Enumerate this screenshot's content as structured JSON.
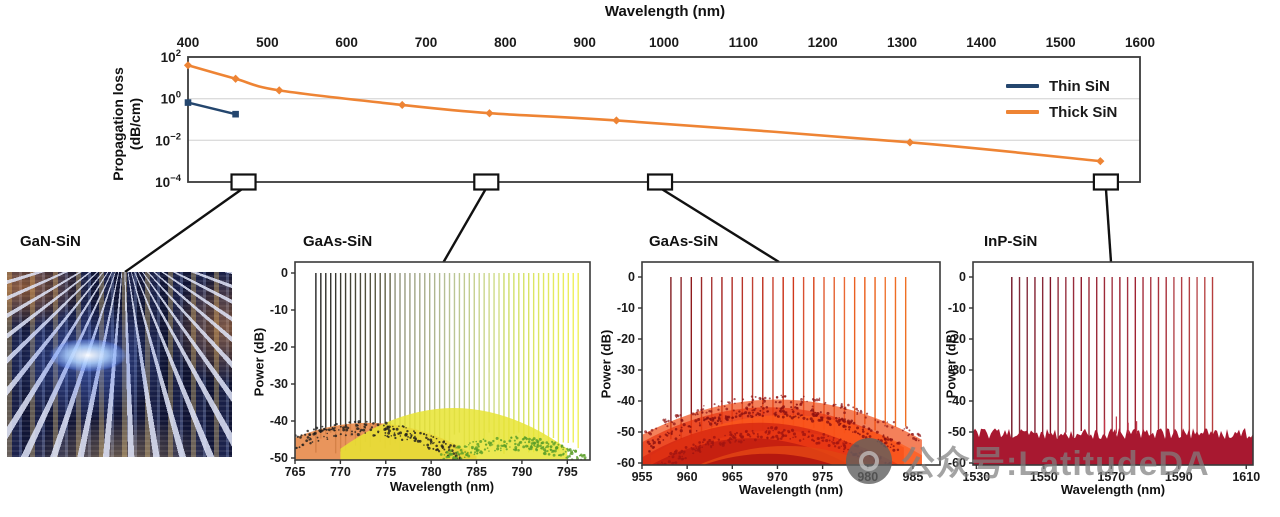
{
  "top_chart": {
    "ylabel_line1": "Propagation loss",
    "ylabel_line2": "(dB/cm)"
  },
  "photo_panel": {
    "label": "GaN-SiN",
    "type": "photograph",
    "content": "GaN photonic chip under probe needles emitting bright blue light"
  },
  "watermark": {
    "logo": "camera-icon",
    "text": "公众号:LatitudeDA",
    "color": "#808080"
  },
  "chart_data": [
    {
      "type": "line",
      "name": "propagation-loss-vs-wavelength",
      "title": "Wavelength (nm)",
      "xlabel": "Wavelength (nm)",
      "ylabel": "Propagation loss (dB/cm)",
      "x_axis_position": "top",
      "xlim": [
        400,
        1600
      ],
      "x_ticks": [
        400,
        500,
        600,
        700,
        800,
        900,
        1000,
        1100,
        1200,
        1300,
        1400,
        1500,
        1600
      ],
      "y_scale": "log",
      "ylim_exp": [
        -4,
        2
      ],
      "y_tick_exponents": [
        2,
        0,
        -2,
        -4
      ],
      "gridline_exponents": [
        0,
        -2
      ],
      "legend_position": "top-right",
      "series": [
        {
          "name": "Thin SiN",
          "color": "#24466e",
          "marker": "square",
          "x": [
            400,
            460
          ],
          "y": [
            0.65,
            0.18
          ]
        },
        {
          "name": "Thick SiN",
          "color": "#ee8434",
          "marker": "diamond",
          "x": [
            400,
            460,
            515,
            670,
            780,
            940,
            1310,
            1550
          ],
          "y": [
            40,
            9,
            2.5,
            0.5,
            0.2,
            0.09,
            0.008,
            0.001
          ]
        }
      ],
      "callout_boxes_nm": [
        470,
        776,
        995,
        1557
      ]
    },
    {
      "type": "line",
      "name": "gaas-sin-laser-spectra-780nm",
      "title": "GaAs-SiN",
      "xlabel": "Wavelength (nm)",
      "ylabel": "Power (dB)",
      "xlim": [
        765,
        797.5
      ],
      "x_ticks": [
        765,
        770,
        775,
        780,
        785,
        790,
        795
      ],
      "ylim": [
        -50,
        0
      ],
      "y_ticks": [
        0,
        -10,
        -20,
        -30,
        -40,
        -50
      ],
      "comb": {
        "start_nm": 767.3,
        "end_nm": 796.2,
        "count": 54,
        "peak_db": 0,
        "bottom_db": -46,
        "color_stops": [
          "#1a1a1a",
          "#55543a",
          "#9aa86a",
          "#cadc50",
          "#eeee3e"
        ]
      },
      "humps": [
        {
          "center_nm": 773,
          "half_width_nm": 12,
          "peak_db": -40.5,
          "droop_db": 9,
          "color": "#e78a4a",
          "opacity": 0.9
        },
        {
          "center_nm": 782.5,
          "half_width_nm": 12.5,
          "peak_db": -36.5,
          "droop_db": 11,
          "color": "#e8e432",
          "opacity": 0.85
        },
        {
          "center_nm": 772.5,
          "half_width_nm": 11,
          "peak_db": -42,
          "droop_db": 8,
          "color": "#1c1c1c",
          "style": "speckle"
        },
        {
          "center_nm": 789,
          "half_width_nm": 8,
          "peak_db": -46,
          "droop_db": 5,
          "color": "#5a9e28",
          "style": "speckle"
        }
      ]
    },
    {
      "type": "line",
      "name": "gaas-sin-laser-spectra-970nm",
      "title": "GaAs-SiN",
      "xlabel": "Wavelength (nm)",
      "ylabel": "Power (dB)",
      "xlim": [
        955,
        988
      ],
      "x_ticks": [
        955,
        960,
        965,
        970,
        975,
        980,
        985
      ],
      "ylim": [
        -60,
        0
      ],
      "y_ticks": [
        0,
        -10,
        -20,
        -30,
        -40,
        -50,
        -60
      ],
      "comb": {
        "start_nm": 958.2,
        "end_nm": 984.2,
        "count": 24,
        "peak_db": 0,
        "bottom_db": -50,
        "color_stops": [
          "#7c1016",
          "#a81a14",
          "#cc2c10",
          "#e85414",
          "#ef6c1c"
        ]
      },
      "humps": [
        {
          "center_nm": 970,
          "half_width_nm": 16,
          "peak_db": -39.5,
          "droop_db": 13,
          "color": "#f04a14",
          "opacity": 0.7,
          "style2": "speckle"
        },
        {
          "center_nm": 969,
          "half_width_nm": 15,
          "peak_db": -42,
          "droop_db": 13,
          "color": "#e83410",
          "opacity": 0.7
        },
        {
          "center_nm": 971,
          "half_width_nm": 15,
          "peak_db": -44.5,
          "droop_db": 13,
          "color": "#ff5a1a",
          "opacity": 0.7
        },
        {
          "center_nm": 968,
          "half_width_nm": 14,
          "peak_db": -47,
          "droop_db": 13,
          "color": "#d42410",
          "opacity": 0.75
        },
        {
          "center_nm": 970,
          "half_width_nm": 14,
          "peak_db": -49.5,
          "droop_db": 12,
          "color": "#e83814",
          "opacity": 0.8
        },
        {
          "center_nm": 967,
          "half_width_nm": 13,
          "peak_db": -52,
          "droop_db": 12,
          "color": "#c01c10",
          "opacity": 0.85
        },
        {
          "center_nm": 971,
          "half_width_nm": 13,
          "peak_db": -54.5,
          "droop_db": 11,
          "color": "#e04414",
          "opacity": 0.85
        },
        {
          "center_nm": 969,
          "half_width_nm": 12,
          "peak_db": -57,
          "droop_db": 10,
          "color": "#b01410",
          "opacity": 0.9
        },
        {
          "center_nm": 969.5,
          "half_width_nm": 14,
          "peak_db": -43.5,
          "droop_db": 12,
          "color": "#8c1010",
          "style": "speckle"
        },
        {
          "center_nm": 969.5,
          "half_width_nm": 13,
          "peak_db": -50.5,
          "droop_db": 11,
          "color": "#a01410",
          "style": "speckle"
        }
      ]
    },
    {
      "type": "line",
      "name": "inp-sin-laser-spectra-1550nm",
      "title": "InP-SiN",
      "xlabel": "Wavelength (nm)",
      "ylabel": "Power (dB)",
      "xlim": [
        1529,
        1612
      ],
      "x_ticks": [
        1530,
        1550,
        1570,
        1590,
        1610
      ],
      "ylim": [
        -60,
        0
      ],
      "y_ticks": [
        0,
        -10,
        -20,
        -30,
        -40,
        -50,
        -60
      ],
      "comb": {
        "start_nm": 1540.5,
        "end_nm": 1600,
        "count": 27,
        "peak_db": 0,
        "bottom_db": -52,
        "color_stops": [
          "#6e0e20",
          "#8e1628",
          "#a02030",
          "#b43836"
        ]
      },
      "noise_floor": {
        "top_db": -50.5,
        "jitter_db": 1.8,
        "color": "#a81830"
      },
      "minor_spurs": [
        {
          "nm": 1568,
          "db": -46
        },
        {
          "nm": 1571.5,
          "db": -45
        },
        {
          "nm": 1575,
          "db": -47
        },
        {
          "nm": 1577.5,
          "db": -46.5
        }
      ]
    }
  ]
}
